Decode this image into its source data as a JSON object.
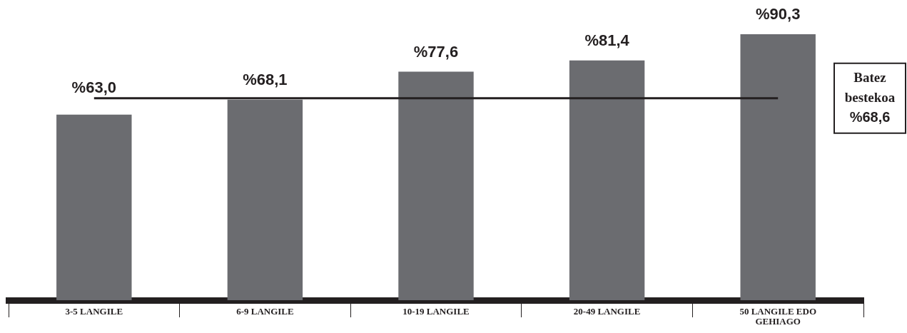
{
  "chart_data": {
    "type": "bar",
    "categories": [
      "3-5 LANGILE",
      "6-9 LANGILE",
      "10-19 LANGILE",
      "20-49 LANGILE",
      "50 LANGILE EDO GEHIAGO"
    ],
    "values": [
      63.0,
      68.1,
      77.6,
      81.4,
      90.3
    ],
    "value_labels": [
      "%63,0",
      "%68,1",
      "%77,6",
      "%81,4",
      "%90,3"
    ],
    "color": "#6b6c70",
    "tick_labels": "x",
    "legend": false,
    "ref_lines": [
      {
        "axis": "y",
        "value": 68.6,
        "label": "Batez bestekoa %68,6",
        "color": "#231f20"
      }
    ]
  }
}
